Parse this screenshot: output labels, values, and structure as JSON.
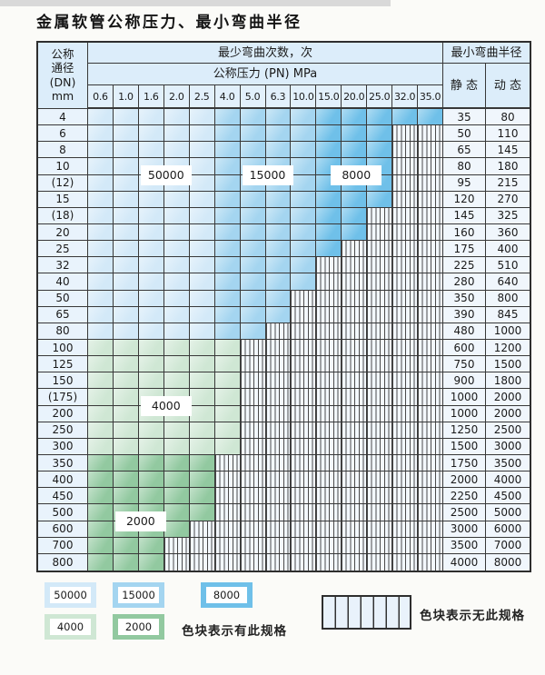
{
  "title": "金属软管公称压力、最小弯曲半径",
  "table": {
    "corner_lines": [
      "公称",
      "通径",
      "(DN)",
      "mm"
    ],
    "bend_cycles_header": "最少弯曲次数，次",
    "pressure_header": "公称压力 (PN) MPa",
    "radius_header": "最小弯曲半径",
    "static_header": "静 态",
    "dynamic_header": "动 态",
    "pressure_columns": [
      "0.6",
      "1.0",
      "1.6",
      "2.0",
      "2.5",
      "4.0",
      "5.0",
      "6.3",
      "10.0",
      "15.0",
      "20.0",
      "25.0",
      "32.0",
      "35.0"
    ],
    "rows": [
      {
        "dn": "4",
        "static": "35",
        "dynamic": "80",
        "colored": 14,
        "zone": "blue"
      },
      {
        "dn": "6",
        "static": "50",
        "dynamic": "110",
        "colored": 12,
        "zone": "blue"
      },
      {
        "dn": "8",
        "static": "65",
        "dynamic": "145",
        "colored": 12,
        "zone": "blue"
      },
      {
        "dn": "10",
        "static": "80",
        "dynamic": "180",
        "colored": 12,
        "zone": "blue"
      },
      {
        "dn": "(12)",
        "static": "95",
        "dynamic": "215",
        "colored": 12,
        "zone": "blue"
      },
      {
        "dn": "15",
        "static": "120",
        "dynamic": "270",
        "colored": 12,
        "zone": "blue"
      },
      {
        "dn": "(18)",
        "static": "145",
        "dynamic": "325",
        "colored": 11,
        "zone": "blue"
      },
      {
        "dn": "20",
        "static": "160",
        "dynamic": "360",
        "colored": 11,
        "zone": "blue"
      },
      {
        "dn": "25",
        "static": "175",
        "dynamic": "400",
        "colored": 10,
        "zone": "blue"
      },
      {
        "dn": "32",
        "static": "225",
        "dynamic": "510",
        "colored": 9,
        "zone": "blue"
      },
      {
        "dn": "40",
        "static": "280",
        "dynamic": "640",
        "colored": 9,
        "zone": "blue"
      },
      {
        "dn": "50",
        "static": "350",
        "dynamic": "800",
        "colored": 8,
        "zone": "blue"
      },
      {
        "dn": "65",
        "static": "390",
        "dynamic": "845",
        "colored": 8,
        "zone": "blue"
      },
      {
        "dn": "80",
        "static": "480",
        "dynamic": "1000",
        "colored": 7,
        "zone": "blue"
      },
      {
        "dn": "100",
        "static": "600",
        "dynamic": "1200",
        "colored": 6,
        "zone": "c4000"
      },
      {
        "dn": "125",
        "static": "750",
        "dynamic": "1500",
        "colored": 6,
        "zone": "c4000"
      },
      {
        "dn": "150",
        "static": "900",
        "dynamic": "1800",
        "colored": 6,
        "zone": "c4000"
      },
      {
        "dn": "(175)",
        "static": "1000",
        "dynamic": "2000",
        "colored": 6,
        "zone": "c4000"
      },
      {
        "dn": "200",
        "static": "1000",
        "dynamic": "2000",
        "colored": 6,
        "zone": "c4000"
      },
      {
        "dn": "250",
        "static": "1250",
        "dynamic": "2500",
        "colored": 6,
        "zone": "c4000"
      },
      {
        "dn": "300",
        "static": "1500",
        "dynamic": "3000",
        "colored": 6,
        "zone": "c4000"
      },
      {
        "dn": "350",
        "static": "1750",
        "dynamic": "3500",
        "colored": 5,
        "zone": "c2000"
      },
      {
        "dn": "400",
        "static": "2000",
        "dynamic": "4000",
        "colored": 5,
        "zone": "c2000"
      },
      {
        "dn": "450",
        "static": "2250",
        "dynamic": "4500",
        "colored": 5,
        "zone": "c2000"
      },
      {
        "dn": "500",
        "static": "2500",
        "dynamic": "5000",
        "colored": 5,
        "zone": "c2000"
      },
      {
        "dn": "600",
        "static": "3000",
        "dynamic": "6000",
        "colored": 4,
        "zone": "c2000"
      },
      {
        "dn": "700",
        "static": "3500",
        "dynamic": "7000",
        "colored": 3,
        "zone": "c2000"
      },
      {
        "dn": "800",
        "static": "4000",
        "dynamic": "8000",
        "colored": 3,
        "zone": "c2000"
      }
    ],
    "blue_zone_by_column": [
      "c50000",
      "c50000",
      "c50000",
      "c50000",
      "c50000",
      "c15000",
      "c15000",
      "c15000",
      "c15000",
      "c8000",
      "c8000",
      "c8000",
      "c8000",
      "c8000"
    ]
  },
  "overlay_labels": [
    {
      "text": "50000",
      "col": 3,
      "span": 2,
      "after_row": 4
    },
    {
      "text": "15000",
      "col": 7,
      "span": 2,
      "after_row": 4
    },
    {
      "text": "8000",
      "col": 10,
      "span": 3,
      "after_row": 4
    },
    {
      "text": "4000",
      "col": 3,
      "span": 2,
      "after_row": 18
    },
    {
      "text": "2000",
      "col": 2,
      "span": 2,
      "after_row": 25
    }
  ],
  "legend": {
    "swatches": [
      {
        "label": "50000",
        "zone": "c50000"
      },
      {
        "label": "15000",
        "zone": "c15000"
      },
      {
        "label": "8000",
        "zone": "c8000"
      },
      {
        "label": "4000",
        "zone": "c4000"
      },
      {
        "label": "2000",
        "zone": "c2000"
      }
    ],
    "has_spec_label": "色块表示有此规格",
    "no_spec_label": "色块表示无此规格"
  },
  "colors": {
    "c50000": "#d3e9f8",
    "c15000": "#a4d5f0",
    "c8000": "#6fc0e9",
    "c4000": "#cfe7d4",
    "c2000": "#92c9a0",
    "grid_line": "#383838",
    "header_bg": "#dcedfa",
    "hatch_bg": "#f3f8fd"
  }
}
